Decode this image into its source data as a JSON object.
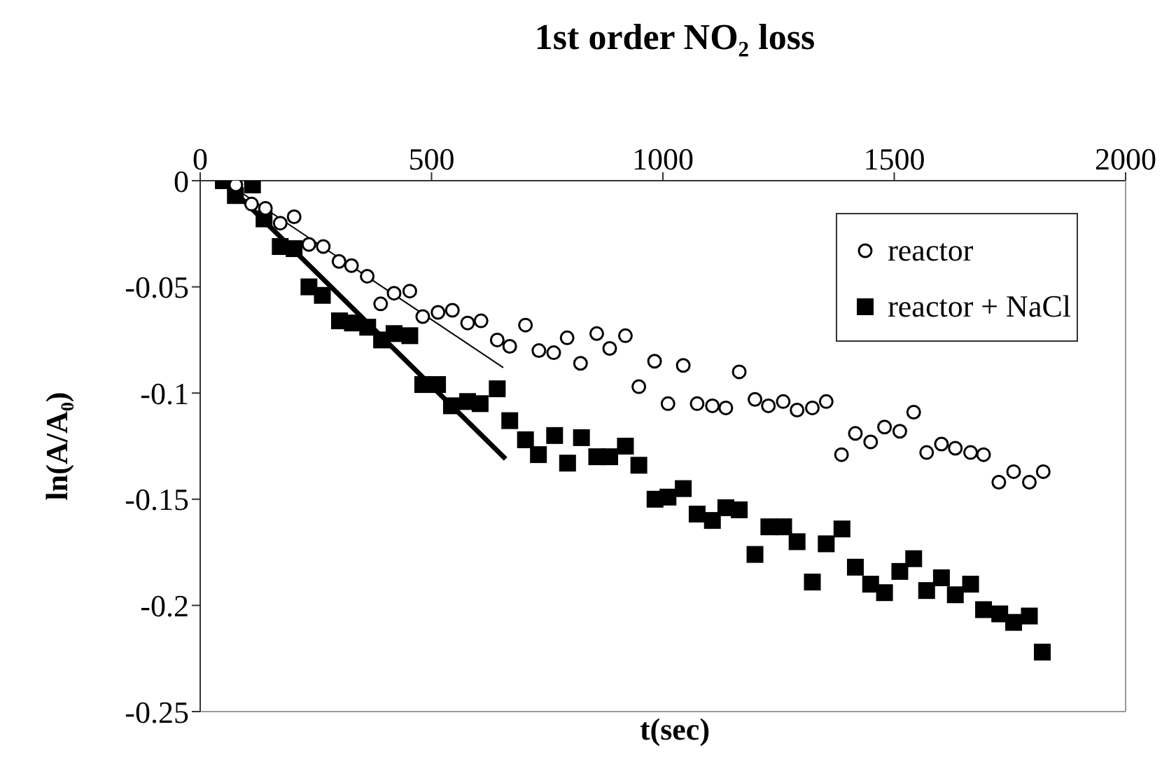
{
  "chart_data": {
    "type": "scatter",
    "title": "1st order NO₂ loss",
    "xlabel": "t(sec)",
    "ylabel": "ln(A/A₀)",
    "xlim": [
      0,
      2000
    ],
    "xticks": [
      0,
      500,
      1000,
      1500,
      2000
    ],
    "ylim": [
      -0.25,
      0
    ],
    "yticks": [
      0,
      -0.05,
      -0.1,
      -0.15,
      -0.2,
      -0.25
    ],
    "legend": "top right",
    "series": [
      {
        "name": "reactor",
        "color": "#000000",
        "marker": "circle",
        "x": [
          77,
          111,
          141,
          173,
          203,
          235,
          266,
          300,
          327,
          361,
          390,
          419,
          453,
          481,
          514,
          545,
          578,
          607,
          642,
          669,
          703,
          732,
          764,
          793,
          822,
          857,
          885,
          919,
          948,
          982,
          1011,
          1044,
          1074,
          1107,
          1136,
          1165,
          1199,
          1228,
          1260,
          1290,
          1323,
          1353,
          1386,
          1416,
          1449,
          1479,
          1512,
          1542,
          1570,
          1602,
          1632,
          1665,
          1693,
          1726,
          1758,
          1792,
          1822
        ],
        "values": [
          -0.002,
          -0.011,
          -0.013,
          -0.02,
          -0.017,
          -0.03,
          -0.031,
          -0.038,
          -0.04,
          -0.045,
          -0.058,
          -0.053,
          -0.052,
          -0.064,
          -0.062,
          -0.061,
          -0.067,
          -0.066,
          -0.075,
          -0.078,
          -0.068,
          -0.08,
          -0.081,
          -0.074,
          -0.086,
          -0.072,
          -0.079,
          -0.073,
          -0.097,
          -0.085,
          -0.105,
          -0.087,
          -0.105,
          -0.106,
          -0.107,
          -0.09,
          -0.103,
          -0.106,
          -0.104,
          -0.108,
          -0.107,
          -0.104,
          -0.129,
          -0.119,
          -0.123,
          -0.116,
          -0.118,
          -0.109,
          -0.128,
          -0.124,
          -0.126,
          -0.128,
          -0.129,
          -0.142,
          -0.137,
          -0.142,
          -0.137
        ]
      },
      {
        "name": "reactor + NaCl",
        "color": "#000000",
        "marker": "square",
        "x": [
          50,
          76,
          113,
          138,
          173,
          203,
          235,
          264,
          301,
          329,
          362,
          392,
          419,
          453,
          481,
          513,
          543,
          578,
          605,
          642,
          669,
          703,
          731,
          766,
          794,
          824,
          857,
          885,
          919,
          948,
          983,
          1011,
          1044,
          1074,
          1107,
          1136,
          1165,
          1199,
          1229,
          1261,
          1290,
          1323,
          1353,
          1387,
          1416,
          1449,
          1479,
          1512,
          1542,
          1570,
          1602,
          1632,
          1665,
          1693,
          1728,
          1758,
          1792,
          1820
        ],
        "values": [
          0,
          -0.007,
          -0.002,
          -0.018,
          -0.031,
          -0.032,
          -0.05,
          -0.054,
          -0.066,
          -0.067,
          -0.069,
          -0.075,
          -0.072,
          -0.073,
          -0.096,
          -0.096,
          -0.106,
          -0.104,
          -0.105,
          -0.098,
          -0.113,
          -0.122,
          -0.129,
          -0.12,
          -0.133,
          -0.121,
          -0.13,
          -0.13,
          -0.125,
          -0.134,
          -0.15,
          -0.149,
          -0.145,
          -0.157,
          -0.16,
          -0.154,
          -0.155,
          -0.176,
          -0.163,
          -0.163,
          -0.17,
          -0.189,
          -0.171,
          -0.164,
          -0.182,
          -0.19,
          -0.194,
          -0.184,
          -0.178,
          -0.193,
          -0.187,
          -0.195,
          -0.19,
          -0.202,
          -0.204,
          -0.208,
          -0.205,
          -0.222
        ]
      },
      {
        "type": "line",
        "color": "#000000",
        "marker": "none",
        "x": [
          50,
          655
        ],
        "values": [
          0,
          -0.088
        ]
      },
      {
        "type": "line",
        "color": "#000000",
        "marker": "none",
        "x": [
          50,
          660
        ],
        "values": [
          0,
          -0.131
        ]
      }
    ]
  }
}
